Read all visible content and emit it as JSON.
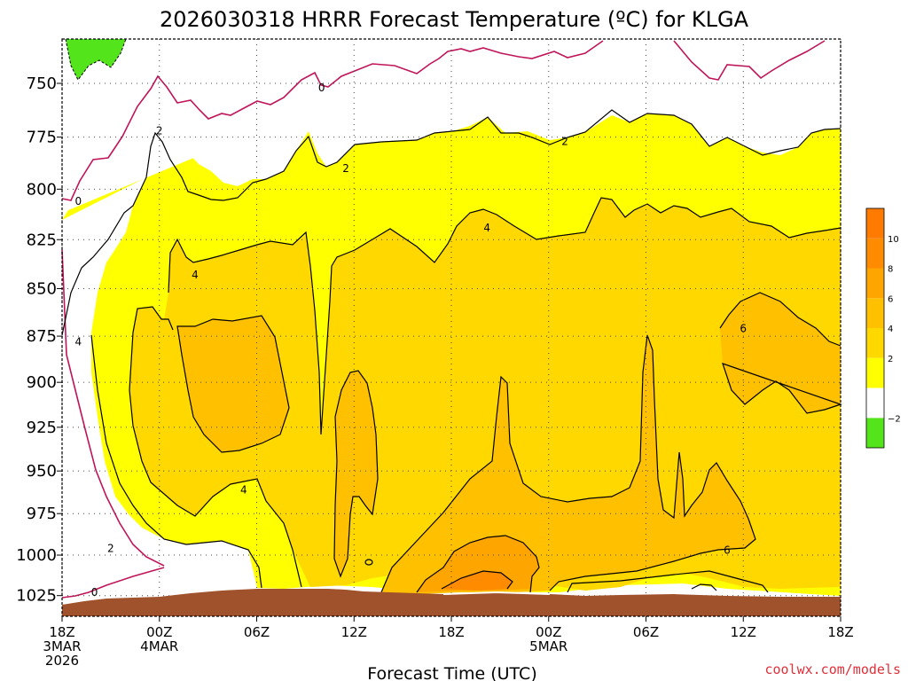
{
  "chart_data": {
    "type": "contour",
    "title": "2026030318 HRRR Forecast Temperature (ºC) for KLGA",
    "xlabel": "Forecast Time (UTC)",
    "ylabel": "",
    "credit": "coolwx.com/models",
    "x_range_hours": [
      0,
      48
    ],
    "y_range_hpa": [
      730,
      1038
    ],
    "y_scale": "log-pressure",
    "grid": "dotted",
    "y_ticks": [
      750,
      775,
      800,
      825,
      850,
      875,
      900,
      925,
      950,
      975,
      1000,
      1025
    ],
    "x_ticks": [
      {
        "h": 0,
        "line1": "18Z",
        "line2": "3MAR",
        "line3": "2026"
      },
      {
        "h": 6,
        "line1": "00Z",
        "line2": "4MAR",
        "line3": ""
      },
      {
        "h": 12,
        "line1": "06Z",
        "line2": "",
        "line3": ""
      },
      {
        "h": 18,
        "line1": "12Z",
        "line2": "",
        "line3": ""
      },
      {
        "h": 24,
        "line1": "18Z",
        "line2": "",
        "line3": ""
      },
      {
        "h": 30,
        "line1": "00Z",
        "line2": "5MAR",
        "line3": ""
      },
      {
        "h": 36,
        "line1": "06Z",
        "line2": "",
        "line3": ""
      },
      {
        "h": 42,
        "line1": "12Z",
        "line2": "",
        "line3": ""
      },
      {
        "h": 48,
        "line1": "18Z",
        "line2": "",
        "line3": ""
      }
    ],
    "colorbar": {
      "levels": [
        -4,
        -2,
        0,
        2,
        4,
        6,
        8,
        10,
        12
      ],
      "tick_labels": [
        "−2",
        "2",
        "4",
        "6",
        "8",
        "10"
      ],
      "tick_values": [
        -2,
        2,
        4,
        6,
        8,
        10
      ],
      "colors": [
        "#54e41c",
        "#ffffff",
        "#ffff00",
        "#ffd800",
        "#ffc000",
        "#ffa500",
        "#ff8c00",
        "#ff7a00"
      ]
    },
    "contour_labels": [
      {
        "text": "0",
        "h": 1.0,
        "p": 806
      },
      {
        "text": "0",
        "h": 2.0,
        "p": 1023
      },
      {
        "text": "0",
        "h": 16.0,
        "p": 752
      },
      {
        "text": "2",
        "h": 6.0,
        "p": 772
      },
      {
        "text": "2",
        "h": 17.5,
        "p": 790
      },
      {
        "text": "2",
        "h": 3.0,
        "p": 996
      },
      {
        "text": "2",
        "h": 31.0,
        "p": 777
      },
      {
        "text": "4",
        "h": 1.0,
        "p": 878
      },
      {
        "text": "4",
        "h": 8.2,
        "p": 843
      },
      {
        "text": "4",
        "h": 11.2,
        "p": 961
      },
      {
        "text": "4",
        "h": 26.2,
        "p": 819
      },
      {
        "text": "6",
        "h": 42.0,
        "p": 871
      },
      {
        "text": "6",
        "h": 41.0,
        "p": 997
      }
    ]
  }
}
